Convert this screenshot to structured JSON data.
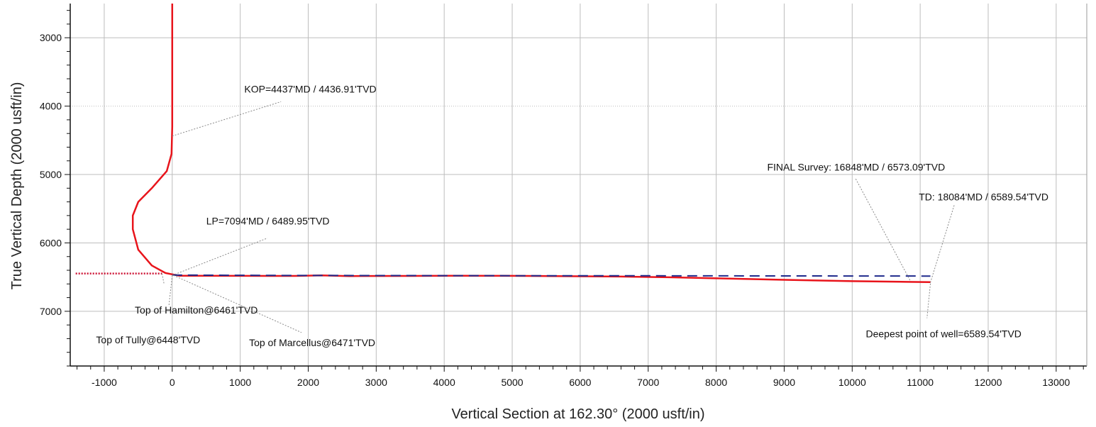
{
  "chart_data": {
    "type": "line",
    "title": "",
    "xlabel": "Vertical Section at 162.30° (2000 usft/in)",
    "ylabel": "True Vertical Depth (2000 usft/in)",
    "xlim": [
      -1500,
      13450
    ],
    "ylim": [
      2500,
      7800
    ],
    "y_inverted": true,
    "grid": true,
    "x_ticks": [
      -1000,
      0,
      1000,
      2000,
      3000,
      4000,
      5000,
      6000,
      7000,
      8000,
      9000,
      10000,
      11000,
      12000,
      13000
    ],
    "y_ticks": [
      3000,
      4000,
      5000,
      6000,
      7000
    ],
    "colors": {
      "actual": "#e8141b",
      "plan": "#1f2a8c",
      "formation": "#cc1133",
      "grid": "#bdbdbd",
      "leader": "#8a8a8a"
    },
    "series": [
      {
        "style": "actual",
        "points": [
          [
            0,
            2500
          ],
          [
            0,
            3500
          ],
          [
            0,
            4300
          ],
          [
            -10,
            4700
          ],
          [
            -80,
            4950
          ],
          [
            -300,
            5200
          ],
          [
            -500,
            5400
          ],
          [
            -580,
            5600
          ],
          [
            -580,
            5800
          ],
          [
            -500,
            6100
          ],
          [
            -300,
            6330
          ],
          [
            -100,
            6440
          ],
          [
            100,
            6480
          ],
          [
            1000,
            6482
          ],
          [
            1800,
            6483
          ],
          [
            2200,
            6475
          ],
          [
            2600,
            6485
          ],
          [
            3500,
            6483
          ],
          [
            4200,
            6480
          ],
          [
            5000,
            6482
          ],
          [
            5800,
            6487
          ],
          [
            6600,
            6492
          ],
          [
            7300,
            6503
          ],
          [
            8000,
            6518
          ],
          [
            9000,
            6540
          ],
          [
            10000,
            6560
          ],
          [
            10800,
            6570
          ],
          [
            11150,
            6573
          ]
        ]
      },
      {
        "style": "plan",
        "points": [
          [
            0,
            6470
          ],
          [
            1500,
            6475
          ],
          [
            3000,
            6478
          ],
          [
            5000,
            6480
          ],
          [
            7000,
            6481
          ],
          [
            9000,
            6483
          ],
          [
            11150,
            6485
          ]
        ]
      },
      {
        "style": "formation",
        "points": [
          [
            -1420,
            6448
          ],
          [
            -150,
            6448
          ]
        ]
      }
    ],
    "annotations": [
      {
        "text": "KOP=4437'MD / 4436.91'TVD",
        "anchor": [
          0,
          4437
        ],
        "label_at": [
          1060,
          3800
        ],
        "leader_to": [
          1600,
          3935
        ]
      },
      {
        "text": "LP=7094'MD / 6489.95'TVD",
        "anchor": [
          0,
          6475
        ],
        "label_at": [
          500,
          5730
        ],
        "leader_to": [
          1400,
          5930
        ]
      },
      {
        "text": "Top of Hamilton@6461'TVD",
        "anchor": [
          0,
          6475
        ],
        "label_at": [
          -550,
          7035
        ],
        "leader_to": [
          -50,
          6930
        ]
      },
      {
        "text": "Top of Tully@6448'TVD",
        "anchor": [
          -150,
          6448
        ],
        "label_at": [
          -1120,
          7470
        ],
        "leader_to": [
          -120,
          6600
        ]
      },
      {
        "text": "Top of Marcellus@6471'TVD",
        "anchor": [
          20,
          6475
        ],
        "label_at": [
          1130,
          7510
        ],
        "leader_to": [
          1900,
          7310
        ]
      },
      {
        "text": "FINAL Survey: 16848'MD / 6573.09'TVD",
        "anchor": [
          10850,
          6545
        ],
        "label_at": [
          8750,
          4940
        ],
        "leader_to": [
          10050,
          5060
        ]
      },
      {
        "text": "TD: 18084'MD / 6589.54'TVD",
        "anchor": [
          11150,
          6580
        ],
        "label_at": [
          10980,
          5380
        ],
        "leader_to": [
          11500,
          5450
        ]
      },
      {
        "text": "Deepest point of well=6589.54'TVD",
        "anchor": [
          11150,
          6595
        ],
        "label_at": [
          10200,
          7380
        ],
        "leader_to": [
          11100,
          7100
        ]
      }
    ]
  }
}
